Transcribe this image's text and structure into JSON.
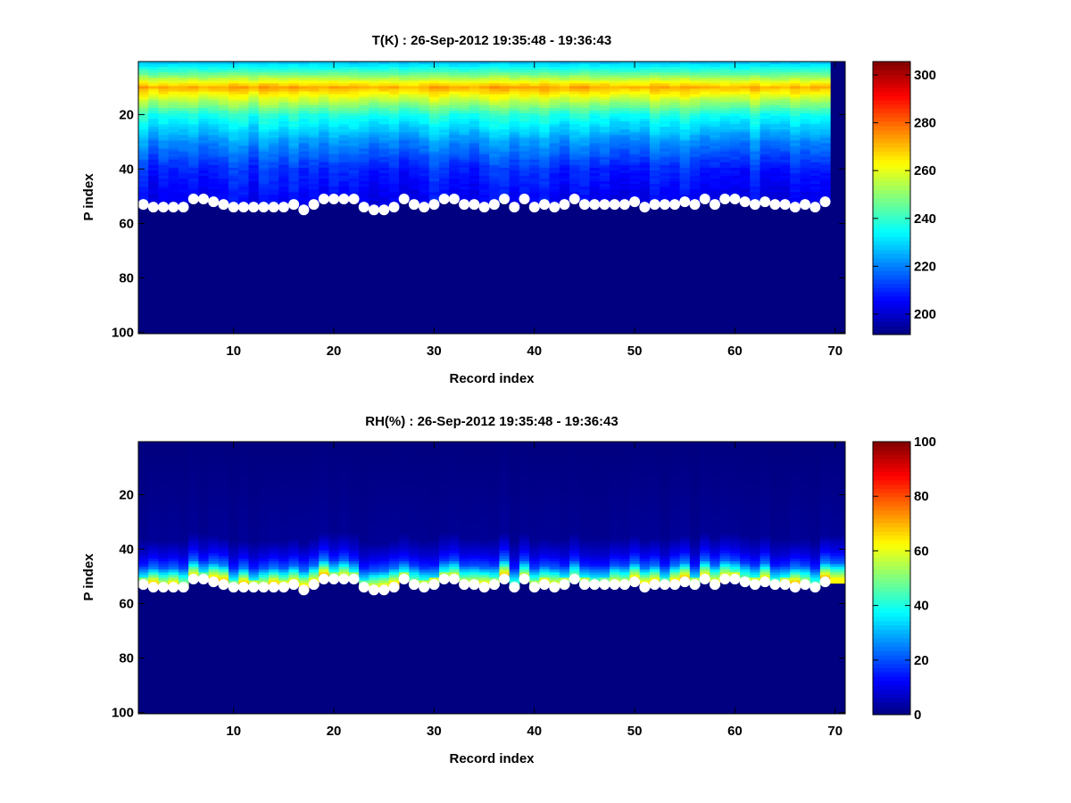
{
  "chart_data": [
    {
      "type": "heatmap",
      "title": "T(K) : 26-Sep-2012 19:35:48 - 19:36:43",
      "xlabel": "Record index",
      "ylabel": "P index",
      "xticks": [
        10,
        20,
        30,
        40,
        50,
        60,
        70
      ],
      "yticks": [
        20,
        40,
        60,
        80,
        100
      ],
      "xlim": [
        0.5,
        71
      ],
      "ylim": [
        0.5,
        100.5
      ],
      "colorbar": {
        "min": 191.4,
        "max": 305.6,
        "ticks": [
          200,
          220,
          240,
          260,
          280,
          300
        ],
        "colormap": "jet"
      },
      "profile_anchor_p": [
        1,
        5,
        10,
        14,
        20,
        30,
        40,
        50
      ],
      "profile_anchor_values": [
        228,
        245,
        272,
        258,
        238,
        222,
        210,
        205
      ],
      "missing_columns": [
        70
      ],
      "markers": {
        "color": "#ffffff",
        "label": "surface P index"
      }
    },
    {
      "type": "heatmap",
      "title": "RH(%) : 26-Sep-2012 19:35:48 - 19:36:43",
      "xlabel": "Record index",
      "ylabel": "P index",
      "xticks": [
        10,
        20,
        30,
        40,
        50,
        60,
        70
      ],
      "yticks": [
        20,
        40,
        60,
        80,
        100
      ],
      "xlim": [
        0.5,
        71
      ],
      "ylim": [
        0.5,
        100.5
      ],
      "colorbar": {
        "min": 0,
        "max": 100,
        "ticks": [
          0,
          20,
          40,
          60,
          80,
          100
        ],
        "colormap": "jet"
      },
      "profile_anchor_p": [
        1,
        36,
        42,
        46,
        49,
        52
      ],
      "profile_anchor_values": [
        0,
        2,
        10,
        20,
        40,
        58
      ],
      "missing_columns": [],
      "markers": {
        "color": "#ffffff",
        "label": "surface P index"
      }
    }
  ],
  "records": [
    1,
    2,
    3,
    4,
    5,
    6,
    7,
    8,
    9,
    10,
    11,
    12,
    13,
    14,
    15,
    16,
    17,
    18,
    19,
    20,
    21,
    22,
    23,
    24,
    25,
    26,
    27,
    28,
    29,
    30,
    31,
    32,
    33,
    34,
    35,
    36,
    37,
    38,
    39,
    40,
    41,
    42,
    43,
    44,
    45,
    46,
    47,
    48,
    49,
    50,
    51,
    52,
    53,
    54,
    55,
    56,
    57,
    58,
    59,
    60,
    61,
    62,
    63,
    64,
    65,
    66,
    67,
    68,
    69
  ],
  "surface_p_index": [
    53,
    54,
    54,
    54,
    54,
    51,
    51,
    52,
    53,
    54,
    54,
    54,
    54,
    54,
    54,
    53,
    55,
    53,
    51,
    51,
    51,
    51,
    54,
    55,
    55,
    54,
    51,
    53,
    54,
    53,
    51,
    51,
    53,
    53,
    54,
    53,
    51,
    54,
    51,
    54,
    53,
    54,
    53,
    51,
    53,
    53,
    53,
    53,
    53,
    52,
    54,
    53,
    53,
    53,
    52,
    53,
    51,
    53,
    51,
    51,
    52,
    53,
    52,
    53,
    53,
    54,
    53,
    54,
    52
  ]
}
